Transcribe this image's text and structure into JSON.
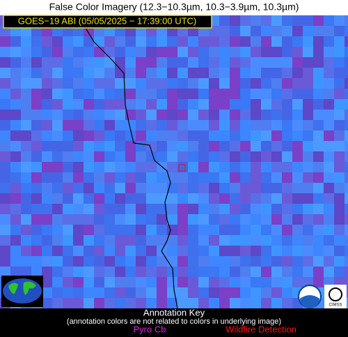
{
  "header": {
    "title": "False Color Imagery (12.3−10.3µm, 10.3−3.9µm, 10.3µm)",
    "product": "GOES−19 ABI (05/05/2025 − 17:39:00 UTC)"
  },
  "legend": {
    "title": "Annotation Key",
    "note": "(annotation colors are not related to colors in underlying image)",
    "items": [
      "Pyro Cb",
      "Wildfire Detection"
    ]
  }
}
